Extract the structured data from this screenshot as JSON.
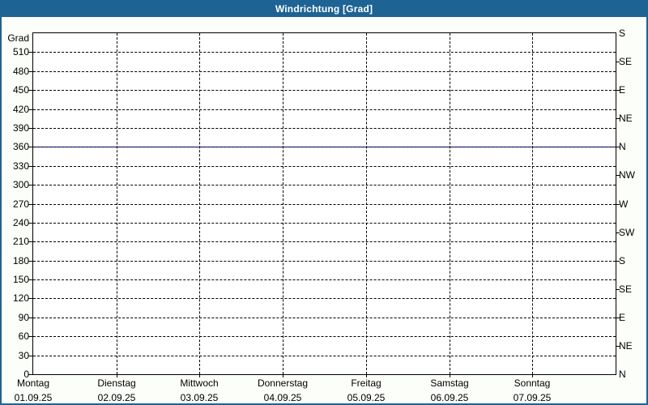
{
  "window": {
    "title": "Windrichtung [Grad]",
    "title_bar_color": "#1d6394",
    "border_color": "#1d6394",
    "background_color": "#fcfefa"
  },
  "chart_data": {
    "type": "line",
    "title": "Windrichtung [Grad]",
    "ylabel": "Grad",
    "ylim": [
      0,
      540
    ],
    "y_tick_step": 30,
    "y_ticks": [
      0,
      30,
      60,
      90,
      120,
      150,
      180,
      210,
      240,
      270,
      300,
      330,
      360,
      390,
      420,
      450,
      480,
      510
    ],
    "right_axis_labels": [
      {
        "value": 540,
        "label": "S"
      },
      {
        "value": 495,
        "label": "SE"
      },
      {
        "value": 450,
        "label": "E"
      },
      {
        "value": 405,
        "label": "NE"
      },
      {
        "value": 360,
        "label": "N"
      },
      {
        "value": 315,
        "label": "NW"
      },
      {
        "value": 270,
        "label": "W"
      },
      {
        "value": 225,
        "label": "SW"
      },
      {
        "value": 180,
        "label": "S"
      },
      {
        "value": 135,
        "label": "SE"
      },
      {
        "value": 90,
        "label": "E"
      },
      {
        "value": 45,
        "label": "NE"
      },
      {
        "value": 0,
        "label": "N"
      }
    ],
    "x_categories": [
      {
        "day": "Montag",
        "date": "01.09.25"
      },
      {
        "day": "Dienstag",
        "date": "02.09.25"
      },
      {
        "day": "Mittwoch",
        "date": "03.09.25"
      },
      {
        "day": "Donnerstag",
        "date": "04.09.25"
      },
      {
        "day": "Freitag",
        "date": "05.09.25"
      },
      {
        "day": "Samstag",
        "date": "06.09.25"
      },
      {
        "day": "Sonntag",
        "date": "07.09.25"
      }
    ],
    "series": [
      {
        "name": "Windrichtung",
        "color": "#0000cc",
        "values": [
          360,
          360,
          360,
          360,
          360,
          360,
          360,
          360
        ]
      }
    ],
    "grid": true,
    "gridline_color": "#000000",
    "legend": "none"
  }
}
